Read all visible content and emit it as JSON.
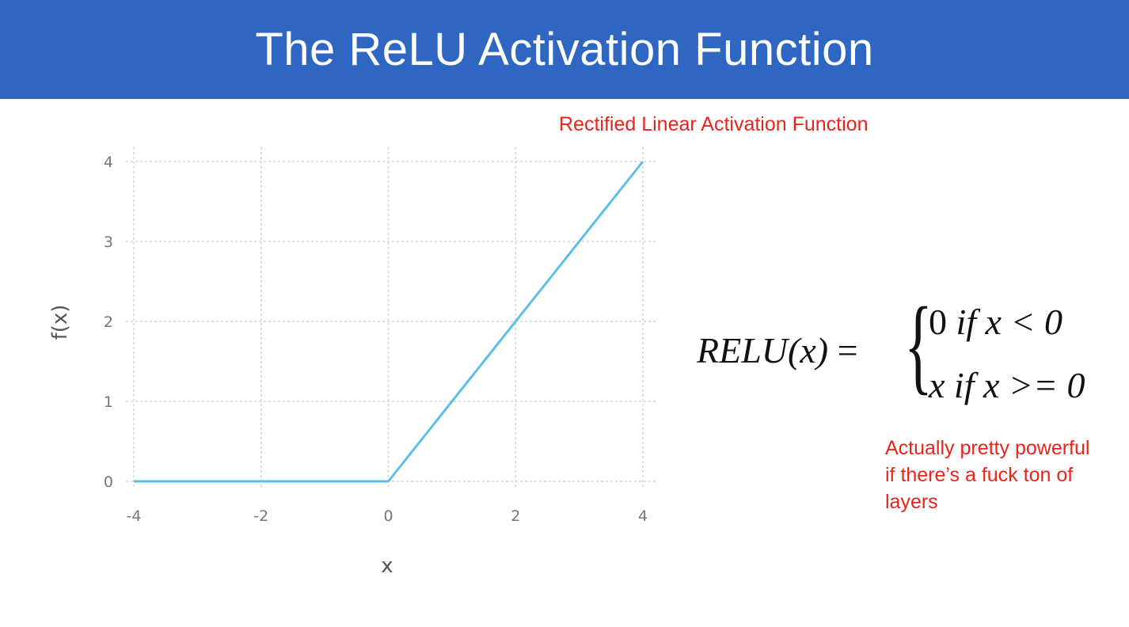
{
  "header": {
    "title": "The ReLU Activation Function"
  },
  "notes": {
    "subtitle": "Rectified Linear Activation Function",
    "side": "Actually pretty powerful if there’s a fuck ton of layers"
  },
  "formula": {
    "lhs": "RELU(x)",
    "equals": "=",
    "case1_value": "0",
    "case1_condition": "if  x < 0",
    "case2_value": "x",
    "case2_condition": "if  x >= 0"
  },
  "chart_data": {
    "type": "line",
    "xlabel": "x",
    "ylabel": "f(x)",
    "xlim": [
      -4,
      4
    ],
    "ylim": [
      0,
      4
    ],
    "x_ticks": [
      -4,
      -2,
      0,
      2,
      4
    ],
    "y_ticks": [
      0,
      1,
      2,
      3,
      4
    ],
    "grid": true,
    "series": [
      {
        "x": [
          -4,
          0,
          4
        ],
        "values": [
          0,
          0,
          4
        ],
        "color": "#5bc0e8"
      }
    ]
  }
}
